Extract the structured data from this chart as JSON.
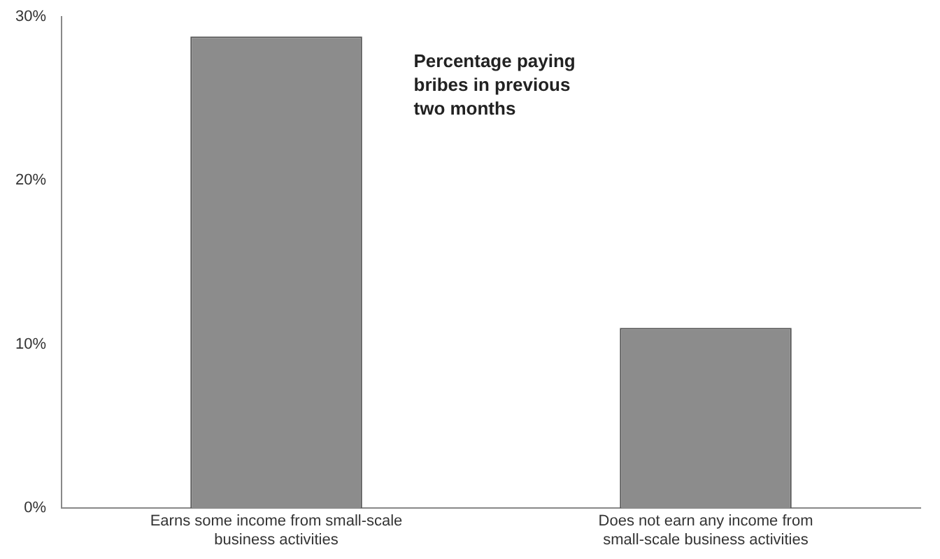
{
  "chart_data": {
    "type": "bar",
    "categories": [
      "Earns some income from small-scale business activities",
      "Does not earn any income from small-scale business activities"
    ],
    "values": [
      28.8,
      11
    ],
    "color": "#8c8c8c",
    "ylim": [
      0,
      30
    ],
    "yticks": [
      {
        "value": 0,
        "label": "0%"
      },
      {
        "value": 10,
        "label": "10%"
      },
      {
        "value": 20,
        "label": "20%"
      },
      {
        "value": 30,
        "label": "30%"
      }
    ],
    "grid": false,
    "legend": false,
    "annotations": [
      "Percentage paying bribes in previous two months"
    ]
  }
}
